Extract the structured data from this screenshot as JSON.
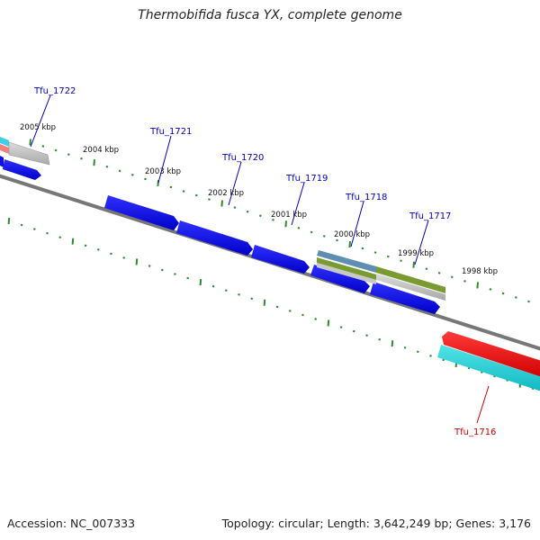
{
  "title": "Thermobifida fusca YX, complete genome",
  "footer": {
    "accession": "Accession: NC_007333",
    "topology": "Topology: circular; Length: 3,642,249 bp; Genes: 3,176"
  },
  "colors": {
    "backbone": "#777777",
    "forward_cds": "#1010e0",
    "gene_label": "#0000bb",
    "highlight_gene": "#ee0000",
    "highlight_label": "#cc0000",
    "tick": "#2e8b2e",
    "rna_teal": "#20c8cc",
    "gray_feature": "#bbbbbb",
    "steel_feature": "#5f8fb0",
    "olive_feature": "#7a9a32",
    "pink_feature": "#f08080",
    "cyan_feature": "#3ccfe8"
  },
  "scale_labels": [
    {
      "id": "2005",
      "text": "2005 kbp"
    },
    {
      "id": "2004",
      "text": "2004 kbp"
    },
    {
      "id": "2003",
      "text": "2003 kbp"
    },
    {
      "id": "2002",
      "text": "2002 kbp"
    },
    {
      "id": "2001",
      "text": "2001 kbp"
    },
    {
      "id": "2000",
      "text": "2000 kbp"
    },
    {
      "id": "1999",
      "text": "1999 kbp"
    },
    {
      "id": "1998",
      "text": "1998 kbp"
    }
  ],
  "gene_labels": [
    {
      "id": "tfu1722",
      "text": "Tfu_1722"
    },
    {
      "id": "tfu1721",
      "text": "Tfu_1721"
    },
    {
      "id": "tfu1720",
      "text": "Tfu_1720"
    },
    {
      "id": "tfu1719",
      "text": "Tfu_1719"
    },
    {
      "id": "tfu1718",
      "text": "Tfu_1718"
    },
    {
      "id": "tfu1717",
      "text": "Tfu_1717"
    },
    {
      "id": "tfu1716",
      "text": "Tfu_1716"
    }
  ]
}
